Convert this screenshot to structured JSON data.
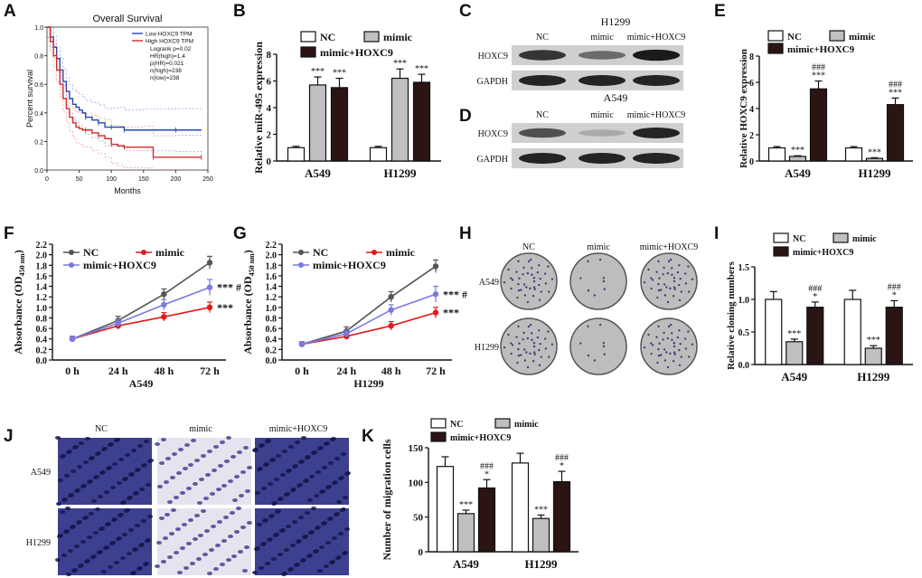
{
  "panel_letters": [
    "A",
    "B",
    "C",
    "D",
    "E",
    "F",
    "G",
    "H",
    "I",
    "J",
    "K"
  ],
  "chart_data": [
    {
      "id": "A",
      "type": "line",
      "title": "Overall Survival",
      "xlabel": "Months",
      "ylabel": "Percent survival",
      "xlim": [
        0,
        250
      ],
      "ylim": [
        0,
        1
      ],
      "xticks": [
        "0",
        "50",
        "100",
        "150",
        "200",
        "250"
      ],
      "yticks": [
        "0.0",
        "0.2",
        "0.4",
        "0.6",
        "0.8",
        "1.0"
      ],
      "legend": [
        {
          "label": "Low HOXC9 TPM",
          "color": "#2347b5"
        },
        {
          "label": "High HOXC9 TPM",
          "color": "#d62a2a"
        }
      ],
      "stats": [
        "Logrank p=0.02",
        "HR(high)=1.4",
        "p(HR)=0.021",
        "n(high)=238",
        "n(low)=238"
      ],
      "series": [
        {
          "name": "Low HOXC9 TPM",
          "color": "#2347b5",
          "x": [
            0,
            5,
            10,
            15,
            20,
            25,
            30,
            35,
            40,
            45,
            50,
            55,
            60,
            70,
            80,
            90,
            100,
            110,
            120,
            150,
            200,
            240
          ],
          "y": [
            1.0,
            0.93,
            0.86,
            0.78,
            0.7,
            0.62,
            0.55,
            0.5,
            0.46,
            0.44,
            0.42,
            0.4,
            0.37,
            0.35,
            0.33,
            0.3,
            0.3,
            0.3,
            0.28,
            0.28,
            0.28,
            0.28
          ]
        },
        {
          "name": "High HOXC9 TPM",
          "color": "#d62a2a",
          "x": [
            0,
            5,
            10,
            15,
            20,
            25,
            30,
            35,
            40,
            45,
            50,
            55,
            60,
            70,
            80,
            90,
            100,
            110,
            120,
            150,
            165,
            200,
            240
          ],
          "y": [
            1.0,
            0.9,
            0.8,
            0.7,
            0.6,
            0.5,
            0.43,
            0.37,
            0.33,
            0.3,
            0.29,
            0.28,
            0.28,
            0.26,
            0.24,
            0.22,
            0.18,
            0.17,
            0.16,
            0.16,
            0.09,
            0.09,
            0.09
          ]
        }
      ]
    },
    {
      "id": "B",
      "type": "bar",
      "ylabel": "Relative miR-495 expression",
      "ylim": [
        0,
        8
      ],
      "yticks": [
        "0",
        "2",
        "4",
        "6",
        "8"
      ],
      "categories": [
        "A549",
        "H1299"
      ],
      "series": [
        {
          "name": "NC",
          "color": "#ffffff",
          "values": [
            1.0,
            1.0
          ],
          "err": [
            0.1,
            0.1
          ],
          "marks": [
            "",
            ""
          ]
        },
        {
          "name": "mimic",
          "color": "#c0c0c0",
          "values": [
            5.7,
            6.2
          ],
          "err": [
            0.6,
            0.7
          ],
          "marks": [
            "***",
            "***"
          ]
        },
        {
          "name": "mimic+HOXC9",
          "color": "#2b1414",
          "values": [
            5.5,
            5.9
          ],
          "err": [
            0.7,
            0.6
          ],
          "marks": [
            "***",
            "***"
          ]
        }
      ]
    },
    {
      "id": "E",
      "type": "bar",
      "ylabel": "Relative HOXC9 expression",
      "ylim": [
        0,
        8
      ],
      "yticks": [
        "0",
        "2",
        "4",
        "6",
        "8"
      ],
      "categories": [
        "A549",
        "H1299"
      ],
      "series": [
        {
          "name": "NC",
          "color": "#ffffff",
          "values": [
            1.0,
            1.0
          ],
          "err": [
            0.1,
            0.1
          ],
          "marks": [
            "",
            ""
          ]
        },
        {
          "name": "mimic",
          "color": "#c0c0c0",
          "values": [
            0.35,
            0.2
          ],
          "err": [
            0.05,
            0.05
          ],
          "marks": [
            "***",
            "***"
          ]
        },
        {
          "name": "mimic+HOXC9",
          "color": "#2b1414",
          "values": [
            5.5,
            4.3
          ],
          "err": [
            0.6,
            0.5
          ],
          "marks": [
            "###\n***",
            "###\n***"
          ]
        }
      ]
    },
    {
      "id": "F",
      "type": "line",
      "ylabel": "Absorbance (OD450 nm)",
      "xlabel": "A549",
      "categories": [
        "0 h",
        "24 h",
        "48 h",
        "72 h"
      ],
      "ylim": [
        0,
        2.2
      ],
      "yticks": [
        "0.0",
        "0.2",
        "0.4",
        "0.6",
        "0.8",
        "1.0",
        "1.2",
        "1.4",
        "1.6",
        "1.8",
        "2.0",
        "2.2"
      ],
      "series": [
        {
          "name": "NC",
          "color": "#555555",
          "values": [
            0.4,
            0.75,
            1.25,
            1.85
          ],
          "err": [
            0.05,
            0.08,
            0.1,
            0.12
          ]
        },
        {
          "name": "mimic",
          "color": "#e01b1b",
          "values": [
            0.4,
            0.65,
            0.82,
            1.0
          ],
          "err": [
            0.05,
            0.06,
            0.08,
            0.1
          ]
        },
        {
          "name": "mimic+HOXC9",
          "color": "#7a7ae0",
          "values": [
            0.4,
            0.7,
            1.05,
            1.38
          ],
          "err": [
            0.05,
            0.07,
            0.1,
            0.15
          ]
        }
      ],
      "annotations": [
        "*** #",
        "***"
      ]
    },
    {
      "id": "G",
      "type": "line",
      "ylabel": "Absorbance (OD450 nm)",
      "xlabel": "H1299",
      "categories": [
        "0 h",
        "24 h",
        "48 h",
        "72 h"
      ],
      "ylim": [
        0,
        2.2
      ],
      "yticks": [
        "0.0",
        "0.2",
        "0.4",
        "0.6",
        "0.8",
        "1.0",
        "1.2",
        "1.4",
        "1.6",
        "1.8",
        "2.0",
        "2.2"
      ],
      "series": [
        {
          "name": "NC",
          "color": "#555555",
          "values": [
            0.3,
            0.55,
            1.2,
            1.78
          ],
          "err": [
            0.05,
            0.08,
            0.1,
            0.12
          ]
        },
        {
          "name": "mimic",
          "color": "#e01b1b",
          "values": [
            0.3,
            0.45,
            0.65,
            0.9
          ],
          "err": [
            0.05,
            0.06,
            0.08,
            0.1
          ]
        },
        {
          "name": "mimic+HOXC9",
          "color": "#7a7ae0",
          "values": [
            0.3,
            0.5,
            0.95,
            1.25
          ],
          "err": [
            0.05,
            0.07,
            0.1,
            0.15
          ]
        }
      ],
      "annotations": [
        "*** #",
        "***"
      ]
    },
    {
      "id": "I",
      "type": "bar",
      "ylabel": "Relative cloning numbers",
      "ylim": [
        0,
        1.5
      ],
      "yticks": [
        "0.0",
        "0.5",
        "1.0",
        "1.5"
      ],
      "categories": [
        "A549",
        "H1299"
      ],
      "series": [
        {
          "name": "NC",
          "color": "#ffffff",
          "values": [
            1.0,
            1.0
          ],
          "err": [
            0.12,
            0.14
          ],
          "marks": [
            "",
            ""
          ]
        },
        {
          "name": "mimic",
          "color": "#c0c0c0",
          "values": [
            0.35,
            0.25
          ],
          "err": [
            0.04,
            0.04
          ],
          "marks": [
            "***",
            "***"
          ]
        },
        {
          "name": "mimic+HOXC9",
          "color": "#2b1414",
          "values": [
            0.88,
            0.88
          ],
          "err": [
            0.08,
            0.1
          ],
          "marks": [
            "###\n*",
            "###\n*"
          ]
        }
      ]
    },
    {
      "id": "K",
      "type": "bar",
      "ylabel": "Number of migration cells",
      "ylim": [
        0,
        150
      ],
      "yticks": [
        "0",
        "50",
        "100",
        "150"
      ],
      "categories": [
        "A549",
        "H1299"
      ],
      "series": [
        {
          "name": "NC",
          "color": "#ffffff",
          "values": [
            123,
            128
          ],
          "err": [
            14,
            14
          ],
          "marks": [
            "",
            ""
          ]
        },
        {
          "name": "mimic",
          "color": "#c0c0c0",
          "values": [
            55,
            48
          ],
          "err": [
            5,
            5
          ],
          "marks": [
            "***",
            "***"
          ]
        },
        {
          "name": "mimic+HOXC9",
          "color": "#2b1414",
          "values": [
            92,
            101
          ],
          "err": [
            12,
            15
          ],
          "marks": [
            "###\n*",
            "###\n*"
          ]
        }
      ]
    }
  ],
  "blots": {
    "C": {
      "title": "H1299",
      "lanes": [
        "NC",
        "mimic",
        "mimic+HOXC9"
      ],
      "rows": [
        "HOXC9",
        "GAPDH"
      ]
    },
    "D": {
      "title": "A549",
      "lanes": [
        "NC",
        "mimic",
        "mimic+HOXC9"
      ],
      "rows": [
        "HOXC9",
        "GAPDH"
      ]
    }
  },
  "images": {
    "H": {
      "cols": [
        "NC",
        "mimic",
        "mimic+HOXC9"
      ],
      "rows": [
        "A549",
        "H1299"
      ]
    },
    "J": {
      "cols": [
        "NC",
        "mimic",
        "mimic+HOXC9"
      ],
      "rows": [
        "A549",
        "H1299"
      ]
    }
  }
}
